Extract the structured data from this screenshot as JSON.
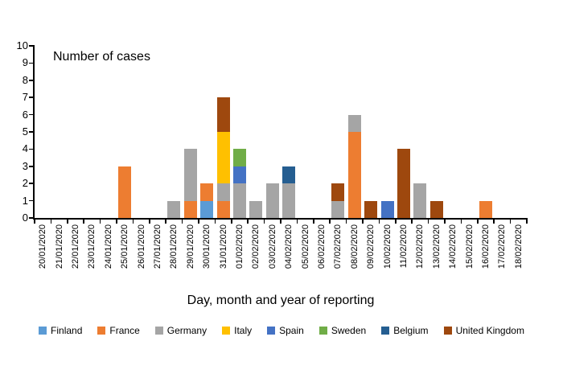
{
  "chart_data": {
    "type": "bar",
    "stacked": true,
    "title": "",
    "ylabel": "Number of cases",
    "xlabel": "Day, month and year of reporting",
    "ylim": [
      0,
      10
    ],
    "y_ticks": [
      0,
      1,
      2,
      3,
      4,
      5,
      6,
      7,
      8,
      9,
      10
    ],
    "grid": false,
    "legend_position": "bottom",
    "axis_color": "#000000",
    "categories": [
      "20/01/2020",
      "21/01/2020",
      "22/01/2020",
      "23/01/2020",
      "24/01/2020",
      "25/01/2020",
      "26/01/2020",
      "27/01/2020",
      "28/01/2020",
      "29/01/2020",
      "30/01/2020",
      "31/01/2020",
      "01/02/2020",
      "02/02/2020",
      "03/02/2020",
      "04/02/2020",
      "05/02/2020",
      "06/02/2020",
      "07/02/2020",
      "08/02/2020",
      "09/02/2020",
      "10/02/2020",
      "11/02/2020",
      "12/02/2020",
      "13/02/2020",
      "14/02/2020",
      "15/02/2020",
      "16/02/2020",
      "17/02/2020",
      "18/02/2020"
    ],
    "series": [
      {
        "name": "Finland",
        "color": "#5B9BD5",
        "values": [
          0,
          0,
          0,
          0,
          0,
          0,
          0,
          0,
          0,
          0,
          1,
          0,
          0,
          0,
          0,
          0,
          0,
          0,
          0,
          0,
          0,
          0,
          0,
          0,
          0,
          0,
          0,
          0,
          0,
          0
        ]
      },
      {
        "name": "France",
        "color": "#ED7D31",
        "values": [
          0,
          0,
          0,
          0,
          0,
          3,
          0,
          0,
          0,
          1,
          1,
          1,
          0,
          0,
          0,
          0,
          0,
          0,
          0,
          5,
          0,
          0,
          0,
          0,
          0,
          0,
          0,
          1,
          0,
          0
        ]
      },
      {
        "name": "Germany",
        "color": "#A5A5A5",
        "values": [
          0,
          0,
          0,
          0,
          0,
          0,
          0,
          0,
          1,
          3,
          0,
          1,
          2,
          1,
          2,
          2,
          0,
          0,
          1,
          1,
          0,
          0,
          0,
          2,
          0,
          0,
          0,
          0,
          0,
          0
        ]
      },
      {
        "name": "Italy",
        "color": "#FFC000",
        "values": [
          0,
          0,
          0,
          0,
          0,
          0,
          0,
          0,
          0,
          0,
          0,
          3,
          0,
          0,
          0,
          0,
          0,
          0,
          0,
          0,
          0,
          0,
          0,
          0,
          0,
          0,
          0,
          0,
          0,
          0
        ]
      },
      {
        "name": "Spain",
        "color": "#4472C4",
        "values": [
          0,
          0,
          0,
          0,
          0,
          0,
          0,
          0,
          0,
          0,
          0,
          0,
          1,
          0,
          0,
          0,
          0,
          0,
          0,
          0,
          0,
          1,
          0,
          0,
          0,
          0,
          0,
          0,
          0,
          0
        ]
      },
      {
        "name": "Sweden",
        "color": "#70AD47",
        "values": [
          0,
          0,
          0,
          0,
          0,
          0,
          0,
          0,
          0,
          0,
          0,
          0,
          1,
          0,
          0,
          0,
          0,
          0,
          0,
          0,
          0,
          0,
          0,
          0,
          0,
          0,
          0,
          0,
          0,
          0
        ]
      },
      {
        "name": "Belgium",
        "color": "#255E91",
        "values": [
          0,
          0,
          0,
          0,
          0,
          0,
          0,
          0,
          0,
          0,
          0,
          0,
          0,
          0,
          0,
          1,
          0,
          0,
          0,
          0,
          0,
          0,
          0,
          0,
          0,
          0,
          0,
          0,
          0,
          0
        ]
      },
      {
        "name": "United Kingdom",
        "color": "#9E480E",
        "values": [
          0,
          0,
          0,
          0,
          0,
          0,
          0,
          0,
          0,
          0,
          0,
          2,
          0,
          0,
          0,
          0,
          0,
          0,
          1,
          0,
          1,
          0,
          4,
          0,
          1,
          0,
          0,
          0,
          0,
          0
        ]
      }
    ]
  }
}
